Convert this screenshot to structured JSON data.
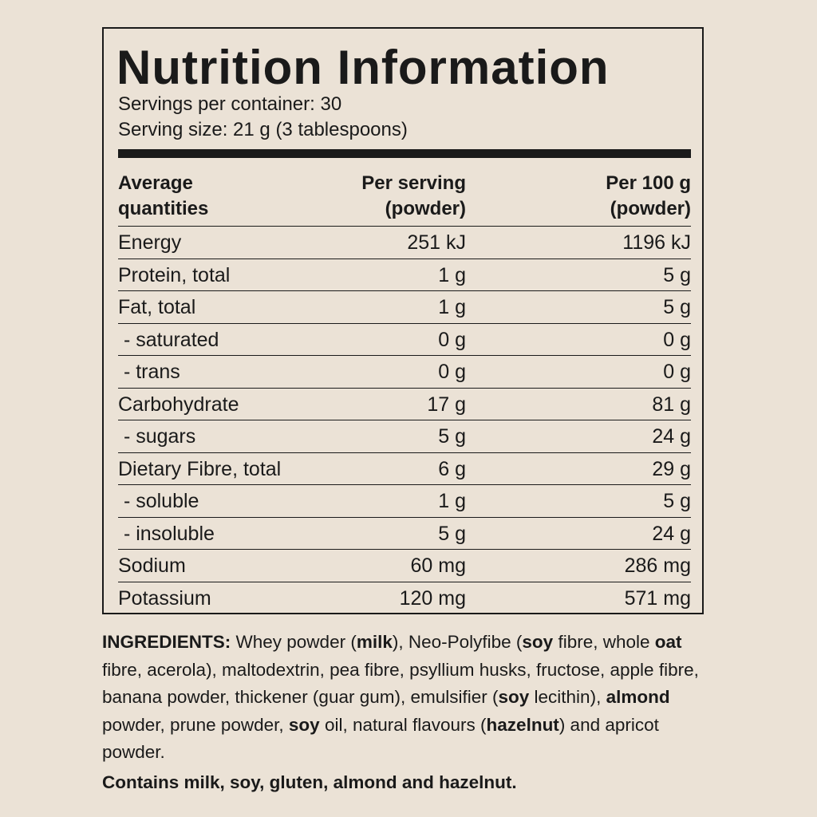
{
  "panel": {
    "title": "Nutrition Information",
    "servings_per_container": "Servings per container: 30",
    "serving_size": "Serving size: 21 g (3 tablespoons)",
    "header": {
      "col1_line1": "Average",
      "col1_line2": "quantities",
      "col2_line1": "Per serving",
      "col2_line2": "(powder)",
      "col3_line1": "Per 100 g",
      "col3_line2": "(powder)"
    },
    "rows": [
      {
        "name": "Energy",
        "per_serving": "251 kJ",
        "per_100g": "1196 kJ"
      },
      {
        "name": "Protein, total",
        "per_serving": "1 g",
        "per_100g": "5 g"
      },
      {
        "name": "Fat, total",
        "per_serving": "1 g",
        "per_100g": "5 g"
      },
      {
        "name": " - saturated",
        "per_serving": "0 g",
        "per_100g": "0 g"
      },
      {
        "name": " - trans",
        "per_serving": "0 g",
        "per_100g": "0 g"
      },
      {
        "name": "Carbohydrate",
        "per_serving": "17 g",
        "per_100g": "81 g"
      },
      {
        "name": " - sugars",
        "per_serving": "5 g",
        "per_100g": "24 g"
      },
      {
        "name": "Dietary Fibre, total",
        "per_serving": "6 g",
        "per_100g": "29 g"
      },
      {
        "name": " - soluble",
        "per_serving": "1 g",
        "per_100g": "5 g"
      },
      {
        "name": " - insoluble",
        "per_serving": "5 g",
        "per_100g": "24 g"
      },
      {
        "name": "Sodium",
        "per_serving": "60 mg",
        "per_100g": "286 mg"
      },
      {
        "name": "Potassium",
        "per_serving": "120 mg",
        "per_100g": "571 mg"
      }
    ]
  },
  "ingredients": {
    "segments": [
      {
        "text": "INGREDIENTS:",
        "bold": true
      },
      {
        "text": " Whey powder (",
        "bold": false
      },
      {
        "text": "milk",
        "bold": true
      },
      {
        "text": "), Neo-Polyfibe (",
        "bold": false
      },
      {
        "text": "soy",
        "bold": true
      },
      {
        "text": " fibre, whole ",
        "bold": false
      },
      {
        "text": "oat",
        "bold": true
      },
      {
        "text": " fibre, acerola), maltodextrin, pea fibre, psyllium husks, fructose, apple fibre, banana powder, thickener (guar gum), emulsifier (",
        "bold": false
      },
      {
        "text": "soy",
        "bold": true
      },
      {
        "text": " lecithin), ",
        "bold": false
      },
      {
        "text": "almond",
        "bold": true
      },
      {
        "text": " powder, prune powder, ",
        "bold": false
      },
      {
        "text": "soy",
        "bold": true
      },
      {
        "text": " oil, natural flavours (",
        "bold": false
      },
      {
        "text": "hazelnut",
        "bold": true
      },
      {
        "text": ") and apricot powder.",
        "bold": false
      }
    ],
    "contains": "Contains milk, soy, gluten, almond and hazelnut."
  }
}
